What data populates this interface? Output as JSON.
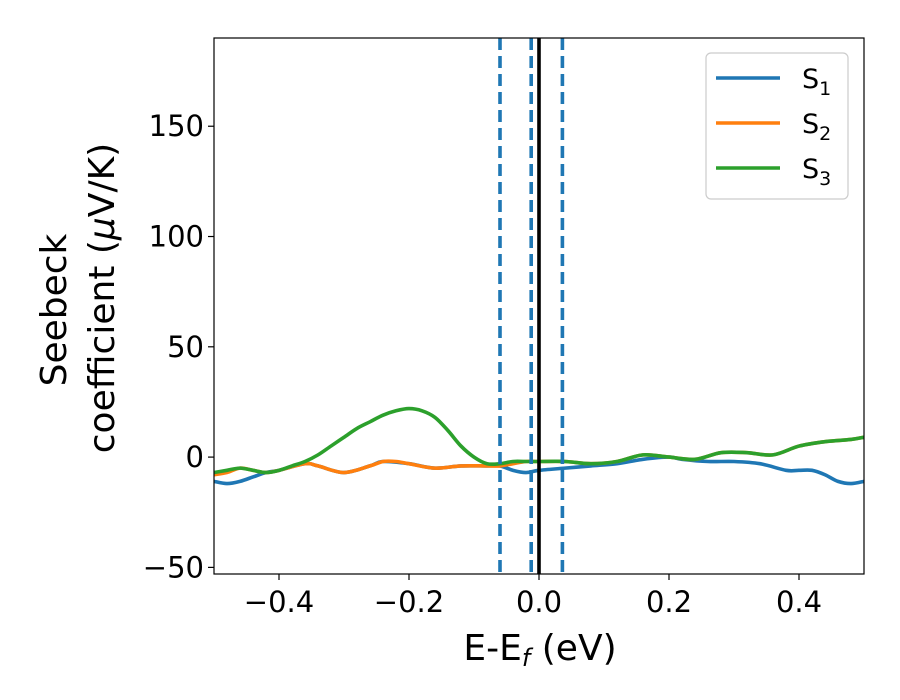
{
  "chart_data": {
    "type": "line",
    "title": "",
    "xlabel": {
      "main": "E-E",
      "sub": "f",
      "rest": " (eV)"
    },
    "ylabel": {
      "line1": "Seebeck",
      "line2_prefix": "coefficient  (",
      "mu": "μ",
      "line2_suffix": "V/K)"
    },
    "xlim": [
      -0.5,
      0.5
    ],
    "ylim": [
      -53,
      190
    ],
    "xticks": [
      {
        "value": -0.4,
        "label": "−0.4"
      },
      {
        "value": -0.2,
        "label": "−0.2"
      },
      {
        "value": 0.0,
        "label": "0.0"
      },
      {
        "value": 0.2,
        "label": "0.2"
      },
      {
        "value": 0.4,
        "label": "0.4"
      }
    ],
    "yticks": [
      {
        "value": -50,
        "label": "−50"
      },
      {
        "value": 0,
        "label": "0"
      },
      {
        "value": 50,
        "label": "50"
      },
      {
        "value": 100,
        "label": "100"
      },
      {
        "value": 150,
        "label": "150"
      }
    ],
    "grid": false,
    "legend_position": "top-right",
    "vlines": [
      {
        "x": 0.0,
        "color": "#000000",
        "style": "solid"
      },
      {
        "x": -0.06,
        "color": "#1f77b4",
        "style": "dashed"
      },
      {
        "x": -0.012,
        "color": "#1f77b4",
        "style": "dashed"
      },
      {
        "x": 0.036,
        "color": "#1f77b4",
        "style": "dashed"
      }
    ],
    "series": [
      {
        "name": "S",
        "sub": "1",
        "color": "#1f77b4",
        "x": [
          -0.5,
          -0.48,
          -0.46,
          -0.44,
          -0.42,
          -0.4,
          -0.36,
          -0.34,
          -0.3,
          -0.26,
          -0.24,
          -0.2,
          -0.16,
          -0.12,
          -0.08,
          -0.06,
          -0.04,
          -0.02,
          0.0,
          0.04,
          0.08,
          0.12,
          0.16,
          0.2,
          0.22,
          0.26,
          0.3,
          0.34,
          0.38,
          0.4,
          0.42,
          0.44,
          0.46,
          0.48,
          0.5
        ],
        "y": [
          -11,
          -12,
          -11,
          -9,
          -7,
          -6,
          -3,
          -4,
          -7,
          -4,
          -2,
          -3,
          -5,
          -4,
          -4,
          -4,
          -6,
          -7,
          -6,
          -5,
          -4,
          -3,
          -1,
          0,
          -1,
          -2,
          -2,
          -3,
          -6,
          -6,
          -6,
          -8,
          -11,
          -12,
          -11
        ]
      },
      {
        "name": "S",
        "sub": "2",
        "color": "#ff7f0e",
        "x": [
          -0.5,
          -0.48,
          -0.46,
          -0.44,
          -0.42,
          -0.4,
          -0.36,
          -0.34,
          -0.3,
          -0.26,
          -0.24,
          -0.22,
          -0.2,
          -0.16,
          -0.12,
          -0.08,
          -0.06,
          -0.04,
          -0.02,
          0.0,
          0.04,
          0.08,
          0.12,
          0.16,
          0.2,
          0.24,
          0.28,
          0.32,
          0.36,
          0.4,
          0.44,
          0.48,
          0.5
        ],
        "y": [
          -8,
          -7,
          -5,
          -6,
          -7,
          -6,
          -3,
          -4,
          -7,
          -4,
          -2,
          -2,
          -3,
          -5,
          -4,
          -4,
          -4,
          -3,
          -2,
          -2,
          -2,
          -3,
          -2,
          1,
          0,
          -1,
          2,
          2,
          1,
          5,
          7,
          8,
          9
        ]
      },
      {
        "name": "S",
        "sub": "3",
        "color": "#2ca02c",
        "x": [
          -0.5,
          -0.48,
          -0.46,
          -0.44,
          -0.42,
          -0.4,
          -0.38,
          -0.36,
          -0.34,
          -0.32,
          -0.3,
          -0.28,
          -0.26,
          -0.24,
          -0.22,
          -0.2,
          -0.18,
          -0.16,
          -0.14,
          -0.12,
          -0.1,
          -0.08,
          -0.06,
          -0.04,
          -0.02,
          0.0,
          0.04,
          0.08,
          0.12,
          0.16,
          0.2,
          0.24,
          0.28,
          0.32,
          0.36,
          0.4,
          0.44,
          0.48,
          0.5
        ],
        "y": [
          -7,
          -6,
          -5,
          -6,
          -7,
          -6,
          -4,
          -2,
          1,
          5,
          9,
          13,
          16,
          19,
          21,
          22,
          21,
          18,
          12,
          5,
          0,
          -3,
          -3,
          -2,
          -2,
          -2,
          -2,
          -3,
          -2,
          1,
          0,
          -1,
          2,
          2,
          1,
          5,
          7,
          8,
          9
        ]
      }
    ]
  }
}
